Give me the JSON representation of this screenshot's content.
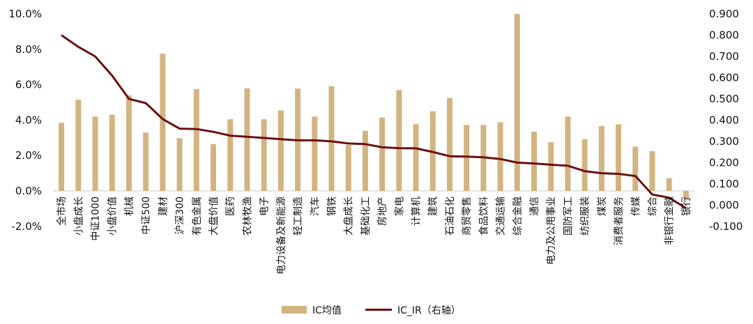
{
  "chart_data": {
    "type": "bar",
    "categories": [
      "全市场",
      "小盘成长",
      "中证1000",
      "小盘价值",
      "机械",
      "中证500",
      "建材",
      "沪深300",
      "有色金属",
      "大盘价值",
      "医药",
      "农林牧渔",
      "电子",
      "电力设备及新能源",
      "轻工制造",
      "汽车",
      "钢铁",
      "大盘成长",
      "基础化工",
      "房地产",
      "家电",
      "计算机",
      "建筑",
      "石油石化",
      "商贸零售",
      "食品饮料",
      "交通运输",
      "综合金融",
      "通信",
      "电力及公用事业",
      "国防军工",
      "纺织服装",
      "煤炭",
      "消费者服务",
      "传媒",
      "综合",
      "非银行金融",
      "银行"
    ],
    "series": [
      {
        "name": "IC均值",
        "type": "bar",
        "axis": "left",
        "color": "#D2B482",
        "values": [
          3.85,
          5.15,
          4.2,
          4.3,
          5.4,
          3.3,
          7.75,
          2.98,
          5.75,
          2.65,
          4.05,
          5.8,
          4.05,
          4.55,
          5.78,
          4.2,
          5.92,
          2.6,
          3.4,
          4.15,
          5.7,
          3.77,
          4.5,
          5.25,
          3.73,
          3.73,
          3.88,
          10.0,
          3.35,
          2.75,
          4.2,
          2.92,
          3.67,
          3.77,
          2.5,
          2.25,
          0.72,
          -0.42
        ]
      },
      {
        "name": "IC_IR（右轴）",
        "type": "line",
        "axis": "right",
        "color": "#6B0F0F",
        "values": [
          0.8,
          0.745,
          0.7,
          0.61,
          0.5,
          0.48,
          0.405,
          0.36,
          0.358,
          0.345,
          0.327,
          0.322,
          0.316,
          0.31,
          0.305,
          0.305,
          0.3,
          0.29,
          0.287,
          0.272,
          0.268,
          0.267,
          0.25,
          0.23,
          0.228,
          0.225,
          0.217,
          0.2,
          0.196,
          0.19,
          0.185,
          0.16,
          0.15,
          0.147,
          0.137,
          0.05,
          0.035,
          -0.015
        ]
      }
    ],
    "y_left": {
      "min": -2.0,
      "max": 10.0,
      "ticks": [
        "-2.0%",
        "0.0%",
        "2.0%",
        "4.0%",
        "6.0%",
        "8.0%",
        "10.0%"
      ]
    },
    "y_right": {
      "min": -0.1,
      "max": 0.9,
      "ticks": [
        "-0.100",
        "0.000",
        "0.100",
        "0.200",
        "0.300",
        "0.400",
        "0.500",
        "0.600",
        "0.700",
        "0.800",
        "0.900"
      ]
    },
    "grid": false,
    "legend": "bottom-center"
  }
}
